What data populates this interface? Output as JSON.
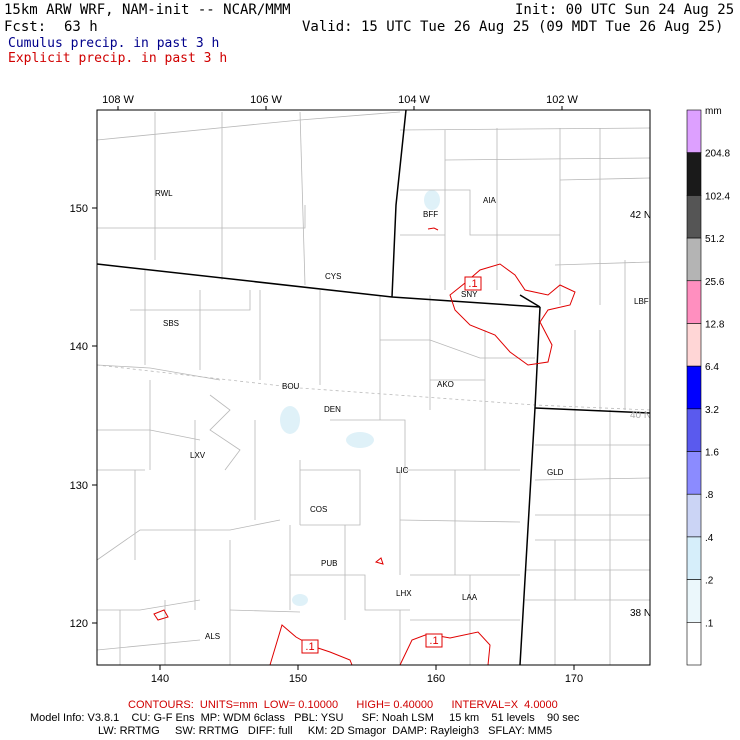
{
  "header": {
    "title": "15km ARW WRF, NAM-init -- NCAR/MMM",
    "init": "Init: 00 UTC Sun 24 Aug 25",
    "fcst_label": "Fcst:",
    "fcst_value": "63 h",
    "valid": "Valid: 15 UTC Tue 26 Aug 25 (09 MDT Tue 26 Aug 25)",
    "field1": "Cumulus precip. in past 3 h",
    "field2": "Explicit precip. in past 3 h",
    "field1_color": "#00008b",
    "field2_color": "#d00000"
  },
  "map": {
    "lon_labels": [
      "108 W",
      "106 W",
      "104 W",
      "102 W"
    ],
    "x_ticks": [
      "140",
      "150",
      "160",
      "170"
    ],
    "y_ticks": [
      "120",
      "130",
      "140",
      "150"
    ],
    "lat_labels": [
      "42 N",
      "40 N",
      "38 N"
    ],
    "cities": [
      "RWL",
      "BFF",
      "AIA",
      "CYS",
      "SNY",
      "LBF",
      "SBS",
      "AKO",
      "BOU",
      "DEN",
      "LXV",
      "LIC",
      "GLD",
      "COS",
      "PUB",
      "LHX",
      "LAA",
      "ALS"
    ],
    "contour_labels": [
      ".1",
      ".1",
      ".1"
    ],
    "contour_color": "#e00000",
    "state_border_color": "#000000",
    "county_color": "#b0b0b0"
  },
  "legend": {
    "unit": "mm",
    "levels": [
      "204.8",
      "102.4",
      "51.2",
      "25.6",
      "12.8",
      "6.4",
      "3.2",
      "1.6",
      ".8",
      ".4",
      ".2",
      ".1"
    ],
    "colors": [
      "#dda0ff",
      "#1a1a1a",
      "#555555",
      "#b4b4b4",
      "#ff8fbf",
      "#ffd6d6",
      "#0000ff",
      "#5a5aee",
      "#8b8bff",
      "#cbd4f5",
      "#d6eefa",
      "#ebf7fb",
      "#ffffff"
    ]
  },
  "footer": {
    "contours": "CONTOURS:  UNITS=mm  LOW= 0.10000      HIGH= 0.40000      INTERVAL=X  4.0000",
    "model1": "Model Info: V3.8.1    CU: G-F Ens  MP: WDM 6class   PBL: YSU      SF: Noah LSM     15 km    51 levels    90 sec",
    "model2": "LW: RRTMG     SW: RRTMG   DIFF: full     KM: 2D Smagor  DAMP: Rayleigh3   SFLAY: MM5"
  }
}
